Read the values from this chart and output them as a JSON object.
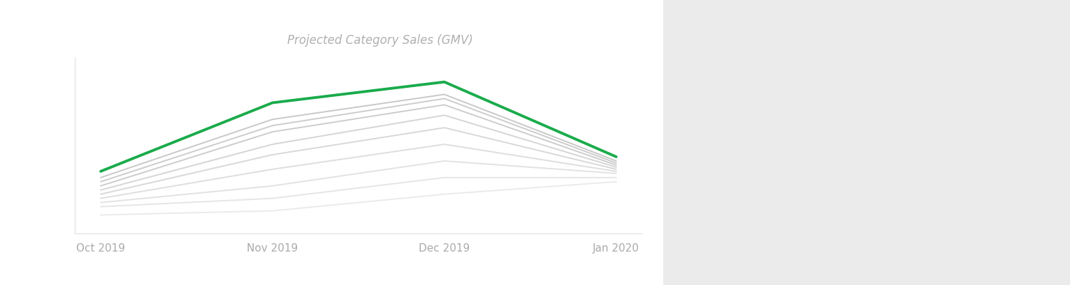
{
  "title": "Projected Category Sales (GMV)",
  "title_color": "#b0b0b0",
  "title_style": "italic",
  "title_fontsize": 12,
  "x_labels": [
    "Oct 2019",
    "Nov 2019",
    "Dec 2019",
    "Jan 2020"
  ],
  "x_tick_color": "#aaaaaa",
  "x_tick_fontsize": 11,
  "background_color": "#ffffff",
  "highlight_line": {
    "values": [
      35,
      68,
      78,
      42
    ],
    "color": "#1aab4b",
    "linewidth": 2.8
  },
  "gray_lines": [
    {
      "values": [
        32,
        60,
        72,
        40
      ],
      "color": "#c8c8c8",
      "linewidth": 1.4
    },
    {
      "values": [
        30,
        57,
        70,
        39
      ],
      "color": "#cccccc",
      "linewidth": 1.4
    },
    {
      "values": [
        28,
        54,
        67,
        38
      ],
      "color": "#cccccc",
      "linewidth": 1.4
    },
    {
      "values": [
        26,
        48,
        62,
        37
      ],
      "color": "#d5d5d5",
      "linewidth": 1.4
    },
    {
      "values": [
        24,
        43,
        56,
        36
      ],
      "color": "#d8d8d8",
      "linewidth": 1.4
    },
    {
      "values": [
        22,
        36,
        48,
        35
      ],
      "color": "#dedede",
      "linewidth": 1.4
    },
    {
      "values": [
        20,
        28,
        40,
        34
      ],
      "color": "#e2e2e2",
      "linewidth": 1.4
    },
    {
      "values": [
        18,
        22,
        32,
        32
      ],
      "color": "#e5e5e5",
      "linewidth": 1.4
    },
    {
      "values": [
        14,
        16,
        24,
        30
      ],
      "color": "#eaeaea",
      "linewidth": 1.4
    }
  ],
  "ylim": [
    5,
    90
  ],
  "xlim": [
    -0.15,
    3.15
  ],
  "spine_color": "#e0e0e0",
  "outer_bg": "#ebebeb",
  "card_bg": "#ffffff",
  "right_bg": "#e8e8e8"
}
